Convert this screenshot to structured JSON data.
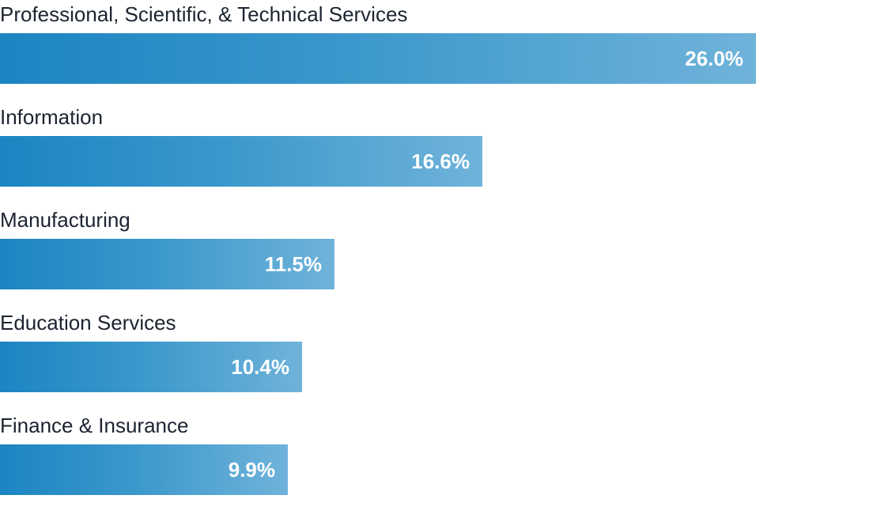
{
  "chart_data": {
    "type": "bar",
    "orientation": "horizontal",
    "categories": [
      "Professional, Scientific, & Technical Services",
      "Information",
      "Manufacturing",
      "Education Services",
      "Finance & Insurance"
    ],
    "values": [
      26.0,
      16.6,
      11.5,
      10.4,
      9.9
    ],
    "value_labels": [
      "26.0%",
      "16.6%",
      "11.5%",
      "10.4%",
      "9.9%"
    ],
    "unit": "%",
    "xlim": [
      0,
      30
    ],
    "grid": false,
    "legend": "none",
    "colors": {
      "bar_start": "#1b85c2",
      "bar_end": "#6fb3da",
      "label_text": "#1c2431",
      "value_text": "#ffffff"
    }
  }
}
